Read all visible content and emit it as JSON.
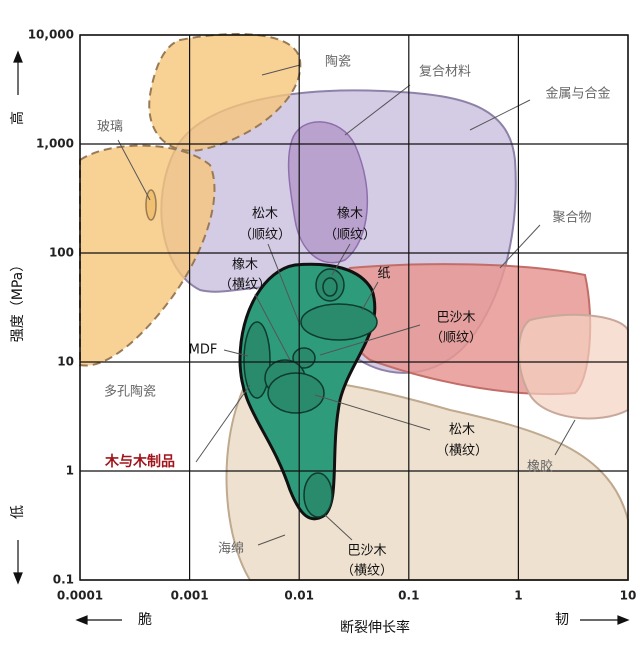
{
  "chart_data": {
    "type": "region",
    "x_label": "断裂伸长率",
    "x_low": "脆",
    "x_high": "韧",
    "y_label": "强度（MPa）",
    "y_low": "低",
    "y_high": "高",
    "log_x": true,
    "log_y": true,
    "grid": true,
    "xlim": [
      0.0001,
      10
    ],
    "xticks": [
      0.0001,
      0.001,
      0.01,
      0.1,
      1,
      10
    ],
    "ylim": [
      0.1,
      10000
    ],
    "yticks": [
      0.1,
      1,
      10,
      100,
      {
        "value": 1000,
        "label": "1,000"
      },
      {
        "value": 10000,
        "label": "10,000"
      }
    ],
    "annotations": [
      "陶瓷",
      "复合材料",
      "金属与合金",
      "玻璃",
      "松木",
      "（顺纹）",
      "橡木",
      "（顺纹）",
      "聚合物",
      "橡木",
      "（横纹）",
      "纸",
      "巴沙木",
      "（顺纹）",
      "MDF",
      "多孔陶瓷",
      "松木",
      "（横纹）",
      "木与木制品",
      "橡胶",
      "海绵",
      "巴沙木",
      "（横纹）"
    ]
  }
}
